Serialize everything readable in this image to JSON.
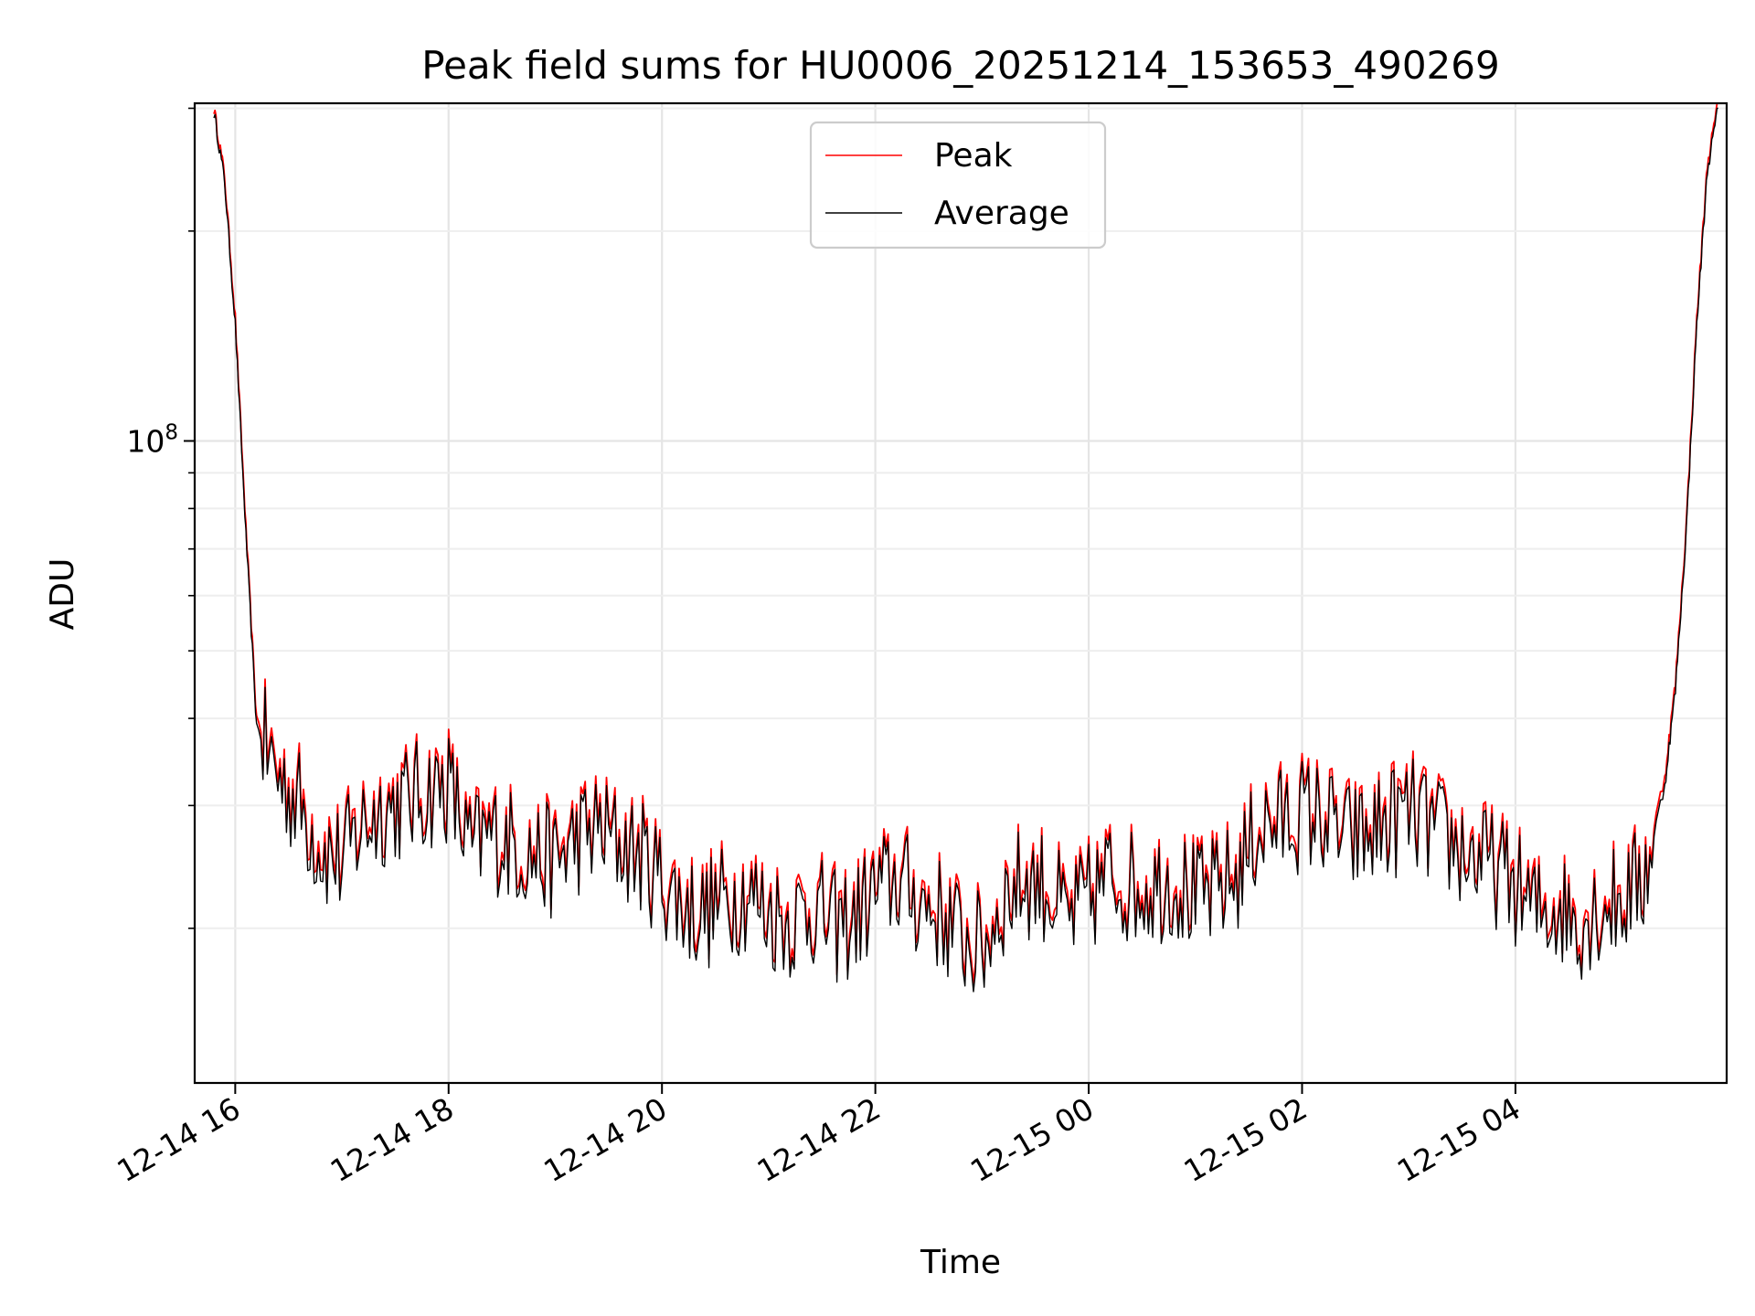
{
  "chart_data": {
    "type": "line",
    "title": "Peak field sums for HU0006_20251214_153653_490269",
    "xlabel": "Time",
    "ylabel": "ADU",
    "yscale": "log",
    "ylim": [
      12000000,
      305000000
    ],
    "ytick_labels": [
      {
        "value": 100000000,
        "base": "10",
        "exp": "8"
      }
    ],
    "xlim_hours": [
      15.62,
      29.98
    ],
    "x_ticks": [
      {
        "hours": 16,
        "label": "12-14 16"
      },
      {
        "hours": 18,
        "label": "12-14 18"
      },
      {
        "hours": 20,
        "label": "12-14 20"
      },
      {
        "hours": 22,
        "label": "12-14 22"
      },
      {
        "hours": 24,
        "label": "12-15 00"
      },
      {
        "hours": 26,
        "label": "12-15 02"
      },
      {
        "hours": 28,
        "label": "12-15 04"
      }
    ],
    "x_hours": [
      15.8,
      15.9,
      16.0,
      16.1,
      16.2,
      16.4,
      16.6,
      16.8,
      17.0,
      17.2,
      17.4,
      17.6,
      17.8,
      18.0,
      18.2,
      18.4,
      18.6,
      18.8,
      19.0,
      19.2,
      19.4,
      19.6,
      19.8,
      20.0,
      20.2,
      20.4,
      20.6,
      20.8,
      21.0,
      21.2,
      21.4,
      21.6,
      21.8,
      22.0,
      22.2,
      22.4,
      22.6,
      22.8,
      23.0,
      23.2,
      23.4,
      23.6,
      23.8,
      24.0,
      24.2,
      24.4,
      24.6,
      24.8,
      25.0,
      25.2,
      25.4,
      25.6,
      25.8,
      26.0,
      26.2,
      26.4,
      26.6,
      26.8,
      27.0,
      27.2,
      27.4,
      27.6,
      27.8,
      28.0,
      28.2,
      28.4,
      28.6,
      28.8,
      29.0,
      29.2,
      29.4,
      29.5,
      29.6,
      29.7,
      29.8,
      29.9
    ],
    "series": [
      {
        "name": "Peak",
        "color": "#ff0000",
        "values": [
          300000000,
          240000000,
          150000000,
          75000000,
          40000000,
          34000000,
          31000000,
          27000000,
          25500000,
          29000000,
          30500000,
          31000000,
          32000000,
          33000000,
          26500000,
          28000000,
          27000000,
          26000000,
          25500000,
          27500000,
          28500000,
          27000000,
          26000000,
          24000000,
          22000000,
          21500000,
          22500000,
          23000000,
          21500000,
          21000000,
          22000000,
          20500000,
          21000000,
          23000000,
          24000000,
          22500000,
          21500000,
          20000000,
          19000000,
          22500000,
          24000000,
          23500000,
          21000000,
          22500000,
          24500000,
          23500000,
          23500000,
          24000000,
          22500000,
          23000000,
          24500000,
          28500000,
          29000000,
          30000000,
          29500000,
          27500000,
          27500000,
          29000000,
          30000000,
          28500000,
          27000000,
          26000000,
          25000000,
          23500000,
          21500000,
          22000000,
          21000000,
          22000000,
          22500000,
          24000000,
          33000000,
          45000000,
          75000000,
          150000000,
          250000000,
          305000000
        ]
      },
      {
        "name": "Average",
        "color": "#000000",
        "values": [
          296000000,
          236000000,
          147000000,
          73500000,
          39000000,
          33000000,
          30000000,
          26000000,
          24800000,
          28200000,
          29600000,
          30200000,
          31200000,
          32000000,
          25800000,
          27200000,
          26300000,
          25300000,
          24800000,
          26800000,
          27700000,
          26300000,
          25300000,
          23400000,
          21400000,
          20900000,
          21900000,
          22400000,
          20900000,
          20400000,
          21400000,
          20000000,
          20400000,
          22400000,
          23400000,
          21900000,
          20900000,
          19400000,
          18500000,
          21900000,
          23400000,
          22900000,
          20400000,
          21900000,
          23800000,
          22900000,
          22900000,
          23400000,
          21900000,
          22400000,
          23800000,
          27800000,
          28200000,
          29200000,
          28700000,
          26800000,
          26800000,
          28200000,
          29200000,
          27800000,
          26300000,
          25300000,
          24300000,
          22900000,
          20900000,
          21400000,
          20400000,
          21400000,
          21900000,
          23400000,
          32100000,
          44000000,
          73500000,
          147000000,
          245000000,
          300000000
        ]
      }
    ],
    "legend": {
      "position": "upper-center",
      "entries": [
        "Peak",
        "Average"
      ]
    },
    "grid": true
  }
}
